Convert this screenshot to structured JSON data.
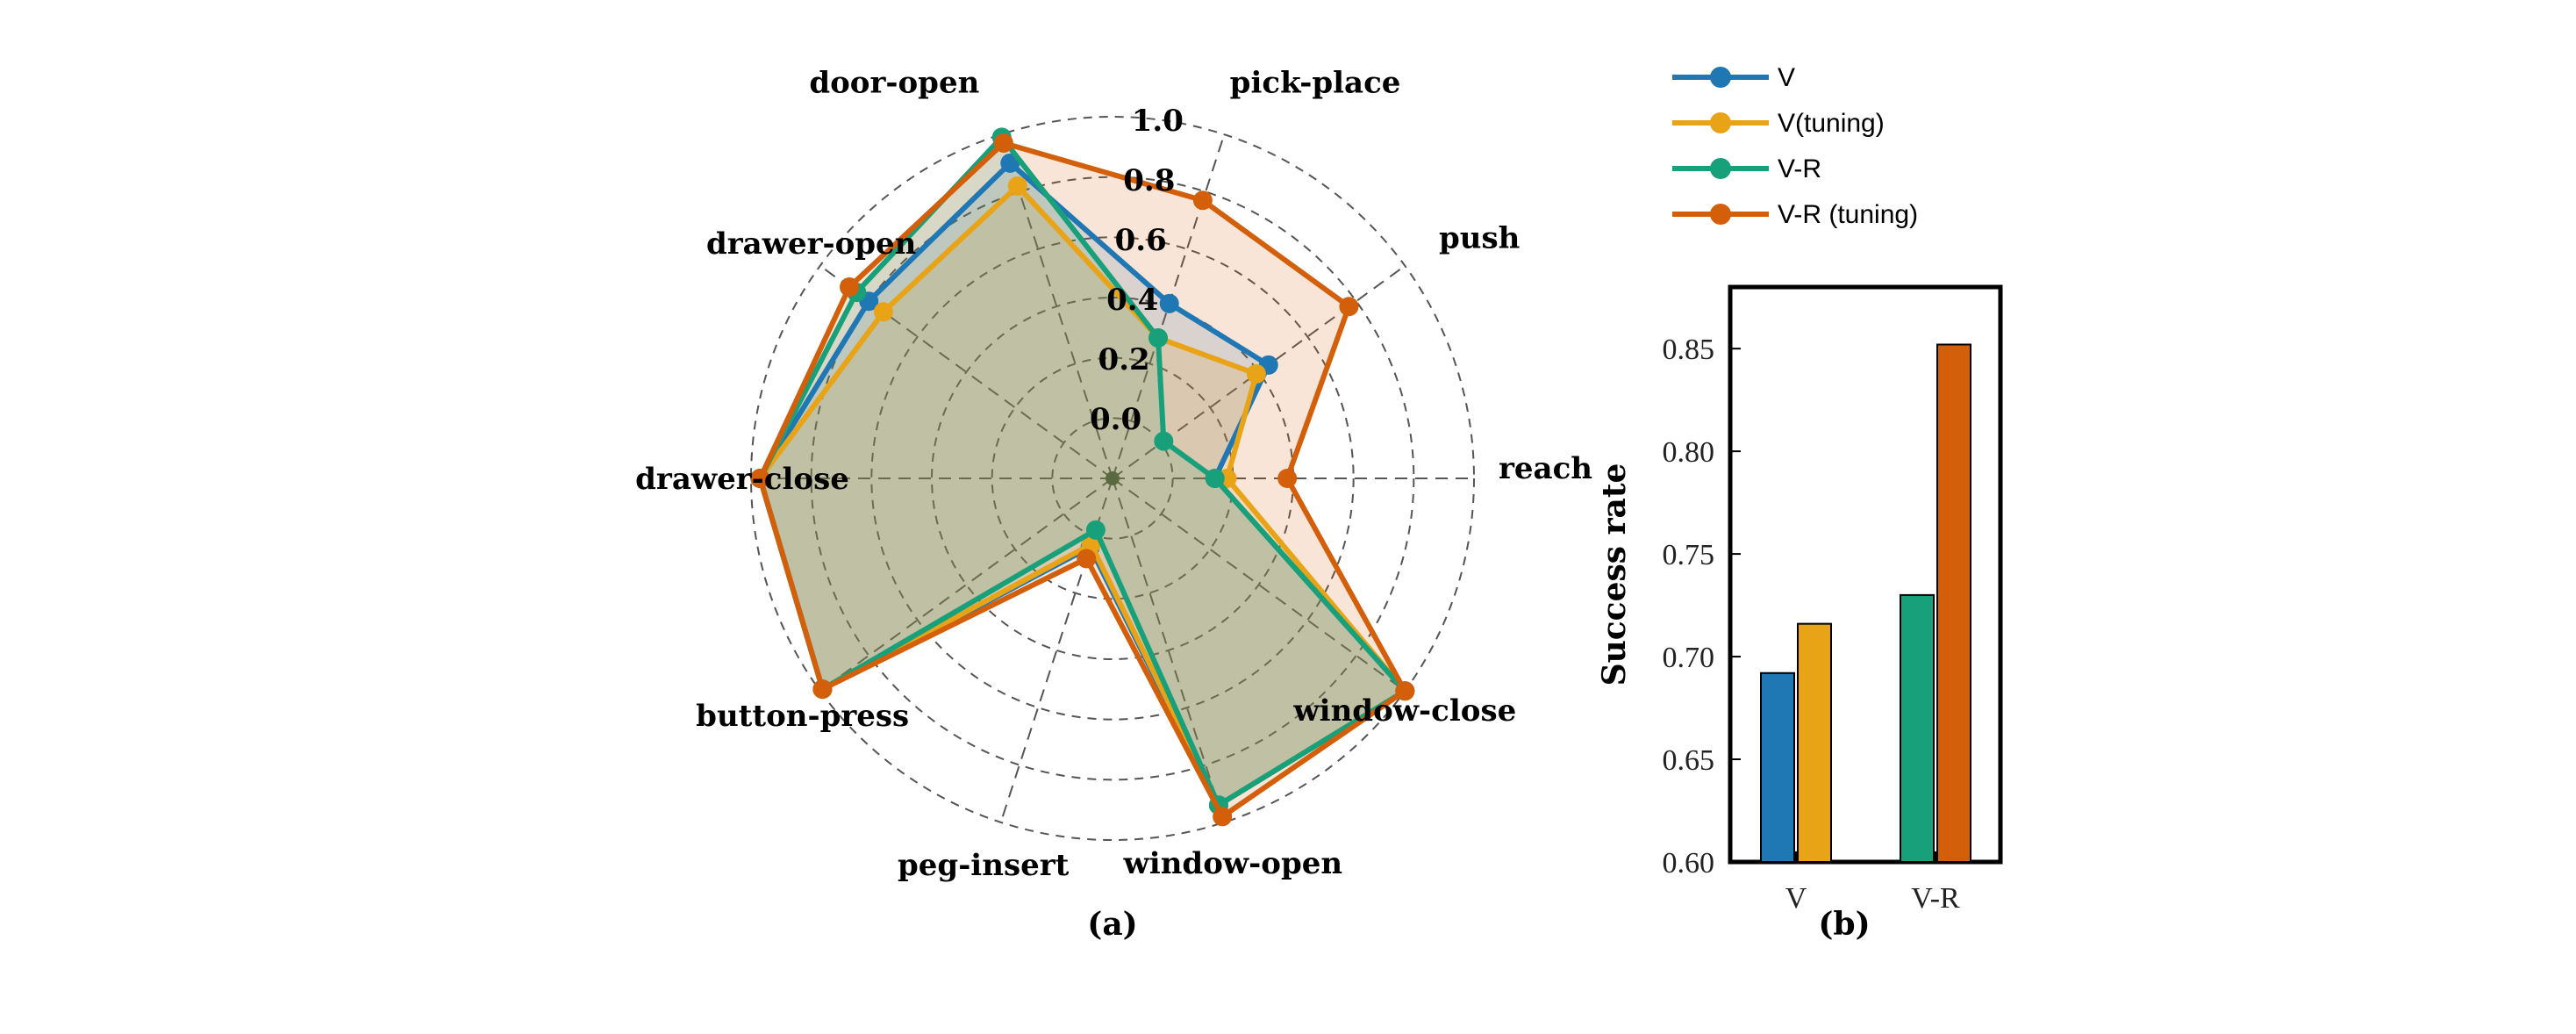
{
  "colors": {
    "V": "#1f77b4",
    "V(tuning)": "#e8a317",
    "V-R": "#17a07a",
    "V-R (tuning)": "#d35f0a",
    "grid": "#555555"
  },
  "legend": [
    {
      "name": "V",
      "color": "#1f77b4"
    },
    {
      "name": "V(tuning)",
      "color": "#e8a317"
    },
    {
      "name": "V-R",
      "color": "#17a07a"
    },
    {
      "name": "V-R (tuning)",
      "color": "#d35f0a"
    }
  ],
  "chart_data": [
    {
      "type": "radar",
      "label": "(a)",
      "axes": [
        "reach",
        "push",
        "pick-place",
        "door-open",
        "drawer-open",
        "drawer-close",
        "button-press",
        "peg-insert",
        "window-open",
        "window-close"
      ],
      "radial_ticks": [
        "0.0",
        "0.2",
        "0.4",
        "0.6",
        "0.8",
        "1.0"
      ],
      "rlim": [
        -0.2,
        1.0
      ],
      "grid": true,
      "series": [
        {
          "name": "V",
          "values": [
            0.14,
            0.44,
            0.41,
            0.9,
            0.8,
            0.97,
            0.99,
            0.04,
            0.94,
            1.0
          ]
        },
        {
          "name": "V(tuning)",
          "values": [
            0.18,
            0.39,
            0.29,
            0.82,
            0.74,
            0.97,
            0.99,
            0.03,
            0.94,
            1.0
          ]
        },
        {
          "name": "V-R",
          "values": [
            0.14,
            0.01,
            0.29,
            0.99,
            0.85,
            0.97,
            0.99,
            -0.02,
            0.94,
            1.0
          ]
        },
        {
          "name": "V-R (tuning)",
          "values": [
            0.38,
            0.77,
            0.77,
            0.97,
            0.88,
            0.97,
            0.99,
            0.08,
            0.98,
            1.0
          ]
        }
      ]
    },
    {
      "type": "bar",
      "label": "(b)",
      "categories": [
        "V",
        "V-R"
      ],
      "ylabel": "Success rate",
      "ylim": [
        0.6,
        0.88
      ],
      "yticks": [
        "0.60",
        "0.65",
        "0.70",
        "0.75",
        "0.80",
        "0.85"
      ],
      "series": [
        {
          "name": "V",
          "values": [
            0.692,
            null
          ]
        },
        {
          "name": "V(tuning)",
          "values": [
            0.716,
            null
          ]
        },
        {
          "name": "V-R",
          "values": [
            null,
            0.73
          ]
        },
        {
          "name": "V-R (tuning)",
          "values": [
            null,
            0.852
          ]
        }
      ]
    }
  ]
}
